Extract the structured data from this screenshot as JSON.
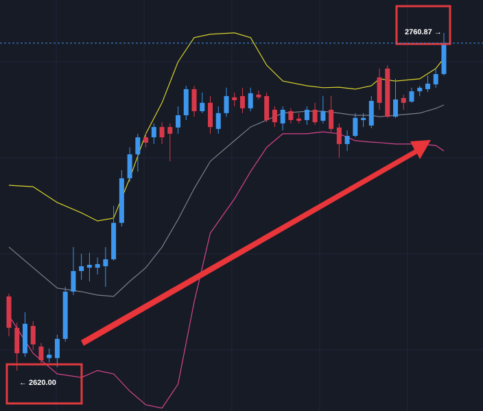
{
  "chart_data": {
    "type": "candlestick",
    "ylim": [
      2603.1,
      2774.6
    ],
    "up_color": "#3d97ee",
    "down_color": "#d8394a",
    "annotations": [
      "2760.87 →",
      "← 2620.00"
    ],
    "open": [
      2650.9,
      2637.8,
      2627.2,
      2638.6,
      2630.0,
      2625.2,
      2625.2,
      2633.2,
      2652.9,
      2661.5,
      2662.9,
      2662.9,
      2663.5,
      2666.4,
      2681.6,
      2700.2,
      2710.2,
      2717.3,
      2717.3,
      2721.6,
      2721.6,
      2721.4,
      2726.5,
      2737.4,
      2728.2,
      2731.7,
      2720.8,
      2727.4,
      2734.0,
      2734.5,
      2729.4,
      2735.1,
      2734.5,
      2728.8,
      2723.1,
      2728.2,
      2725.1,
      2724.5,
      2728.8,
      2724.2,
      2728.8,
      2721.4,
      2714.5,
      2717.9,
      2724.5,
      2722.2,
      2742.3,
      2746.0,
      2725.9,
      2733.7,
      2732.2,
      2736.5,
      2737.4,
      2739.4,
      2743.7
    ],
    "high": [
      2652.1,
      2640.0,
      2644.3,
      2640.6,
      2631.5,
      2629.2,
      2634.9,
      2654.9,
      2671.5,
      2668.7,
      2669.2,
      2667.2,
      2671.5,
      2688.7,
      2703.6,
      2713.1,
      2718.8,
      2718.8,
      2723.1,
      2723.6,
      2723.1,
      2730.2,
      2738.8,
      2738.8,
      2736.0,
      2734.5,
      2730.2,
      2738.0,
      2736.0,
      2738.0,
      2738.0,
      2736.8,
      2736.0,
      2730.2,
      2730.2,
      2729.4,
      2727.4,
      2730.2,
      2731.7,
      2734.5,
      2734.5,
      2723.1,
      2720.2,
      2727.4,
      2727.4,
      2734.5,
      2746.0,
      2747.4,
      2741.7,
      2735.1,
      2738.0,
      2738.8,
      2743.1,
      2746.0,
      2760.87
    ],
    "low": [
      2634.3,
      2620.0,
      2625.7,
      2628.6,
      2622.9,
      2623.4,
      2621.4,
      2632.0,
      2651.5,
      2657.8,
      2657.2,
      2660.1,
      2654.9,
      2665.8,
      2680.1,
      2698.7,
      2703.0,
      2713.1,
      2714.5,
      2714.5,
      2707.3,
      2718.8,
      2724.5,
      2725.9,
      2727.4,
      2718.8,
      2718.8,
      2725.9,
      2730.2,
      2727.4,
      2728.2,
      2733.1,
      2723.6,
      2721.6,
      2720.2,
      2723.1,
      2723.1,
      2722.5,
      2722.5,
      2723.1,
      2719.6,
      2708.8,
      2711.6,
      2717.3,
      2721.6,
      2721.1,
      2728.8,
      2725.4,
      2725.4,
      2728.8,
      2731.7,
      2734.5,
      2736.2,
      2738.0,
      2743.1
    ],
    "close": [
      2637.8,
      2627.2,
      2639.5,
      2630.9,
      2624.3,
      2626.6,
      2633.2,
      2652.9,
      2661.5,
      2663.5,
      2664.1,
      2664.4,
      2666.4,
      2681.6,
      2700.2,
      2710.2,
      2717.3,
      2715.1,
      2721.6,
      2717.3,
      2718.8,
      2726.5,
      2737.4,
      2728.2,
      2731.7,
      2721.6,
      2727.4,
      2734.5,
      2732.8,
      2729.4,
      2735.7,
      2734.0,
      2724.5,
      2723.6,
      2728.8,
      2724.5,
      2724.2,
      2728.8,
      2723.6,
      2728.2,
      2720.8,
      2714.5,
      2717.9,
      2725.4,
      2725.4,
      2732.5,
      2731.7,
      2725.9,
      2733.1,
      2731.7,
      2736.5,
      2738.0,
      2739.7,
      2743.7,
      2756.6
    ],
    "bands": [
      {
        "color": "#d9d32c",
        "x": [
          0,
          3,
          6,
          9,
          11,
          13,
          15,
          17,
          19,
          21,
          23,
          25,
          28,
          30,
          32,
          34,
          37,
          39,
          41,
          43,
          45,
          46,
          48,
          51,
          53,
          54
        ],
        "values": [
          2697.3,
          2696.7,
          2690.1,
          2685.8,
          2682.4,
          2683.6,
          2700.2,
          2718.8,
          2731.7,
          2748.8,
          2758.9,
          2760.3,
          2760.9,
          2758.9,
          2747.4,
          2740.8,
          2738.8,
          2738.0,
          2738.2,
          2737.4,
          2738.8,
          2741.7,
          2740.8,
          2741.7,
          2746.0,
          2750.3
        ]
      },
      {
        "color": "#7d808b",
        "x": [
          0,
          3,
          6,
          9,
          11,
          13,
          15,
          17,
          19,
          21,
          23,
          25,
          28,
          30,
          32,
          34,
          37,
          39,
          41,
          43,
          45,
          46,
          48,
          51,
          53,
          54
        ],
        "values": [
          2671.5,
          2662.9,
          2654.4,
          2652.9,
          2651.5,
          2650.9,
          2657.2,
          2662.9,
          2671.5,
          2683.0,
          2695.9,
          2707.3,
          2715.9,
          2721.6,
          2724.5,
          2727.4,
          2728.2,
          2728.2,
          2727.4,
          2726.5,
          2726.5,
          2725.9,
          2726.5,
          2727.4,
          2729.4,
          2730.8
        ]
      },
      {
        "color": "#d6458d",
        "x": [
          0,
          3,
          6,
          9,
          11,
          13,
          15,
          17,
          19,
          21,
          23,
          25,
          28,
          30,
          32,
          34,
          37,
          39,
          41,
          43,
          45,
          46,
          48,
          51,
          53,
          54
        ],
        "values": [
          2642.9,
          2627.2,
          2618.6,
          2617.1,
          2620.0,
          2618.6,
          2611.4,
          2605.7,
          2604.3,
          2614.3,
          2648.6,
          2677.3,
          2691.6,
          2703.0,
          2713.1,
          2718.8,
          2718.8,
          2719.6,
          2718.8,
          2715.9,
          2715.3,
          2715.1,
          2714.5,
          2714.5,
          2713.9,
          2711.6
        ]
      }
    ]
  }
}
